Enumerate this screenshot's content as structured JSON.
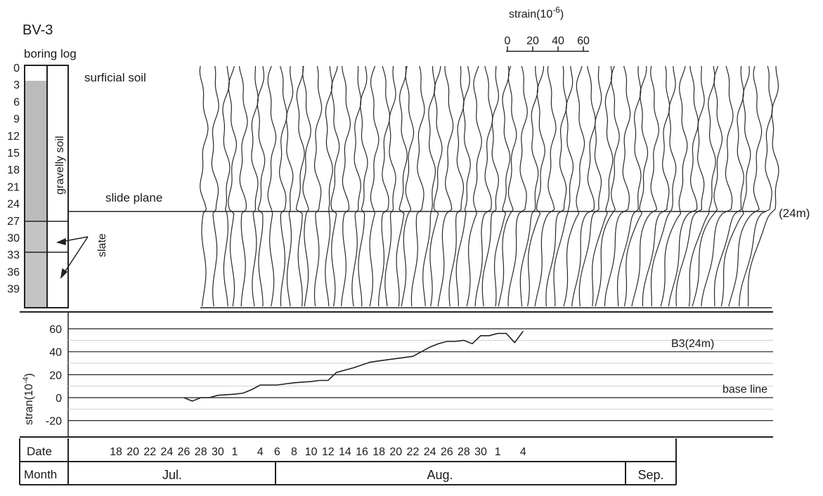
{
  "borehole": "BV-3",
  "boring_log_label": "boring log",
  "depth_ticks": [
    "0",
    "3",
    "6",
    "9",
    "12",
    "15",
    "18",
    "21",
    "24",
    "27",
    "30",
    "33",
    "36",
    "39"
  ],
  "layers": {
    "surficial": "surficial soil",
    "gravelly": "gravelly soil",
    "slate": "slate",
    "slide_plane": "slide plane",
    "slide_depth": "(24m)"
  },
  "strain_scale": {
    "title_prefix": "strain(10",
    "title_exp": "-6",
    "title_suffix": ")",
    "ticks": [
      "0",
      "20",
      "40",
      "60"
    ]
  },
  "chart_data": {
    "type": "line",
    "title": "",
    "ylabel_prefix": "stran(10",
    "ylabel_exp": "-4",
    "ylabel_suffix": ")",
    "yticks": [
      "60",
      "40",
      "20",
      "0",
      "-20"
    ],
    "ylim": [
      -25,
      65
    ],
    "grid": true,
    "series": [
      {
        "name": "B3(24m)",
        "x": [
          "Jul 26",
          "Jul 27",
          "Jul 28",
          "Jul 29",
          "Jul 30",
          "Aug 1",
          "Aug 2",
          "Aug 3",
          "Aug 4",
          "Aug 6",
          "Aug 8",
          "Aug 10",
          "Aug 11",
          "Aug 12",
          "Aug 13",
          "Aug 15",
          "Aug 17",
          "Aug 19",
          "Aug 21",
          "Aug 22",
          "Aug 23",
          "Aug 24",
          "Aug 25",
          "Aug 26",
          "Aug 27",
          "Aug 28",
          "Aug 29",
          "Aug 30",
          "Aug 31",
          "Sep 1",
          "Sep 2",
          "Sep 3",
          "Sep 4"
        ],
        "values": [
          0,
          -3,
          0,
          0,
          2,
          3,
          4,
          7,
          11,
          11,
          13,
          14,
          15,
          15,
          22,
          26,
          31,
          33,
          35,
          36,
          40,
          44,
          47,
          49,
          49,
          50,
          47,
          54,
          54,
          56,
          56,
          48,
          58
        ]
      }
    ],
    "annotations": [
      "base line"
    ]
  },
  "date_row": {
    "label": "Date",
    "labels": [
      "18",
      "20",
      "22",
      "24",
      "26",
      "28",
      "30",
      "1",
      "4",
      "6",
      "8",
      "10",
      "12",
      "14",
      "16",
      "18",
      "20",
      "22",
      "24",
      "26",
      "28",
      "30",
      "1",
      "4"
    ]
  },
  "month_row": {
    "label": "Month",
    "months": [
      "Jul.",
      "Aug.",
      "Sep."
    ]
  }
}
